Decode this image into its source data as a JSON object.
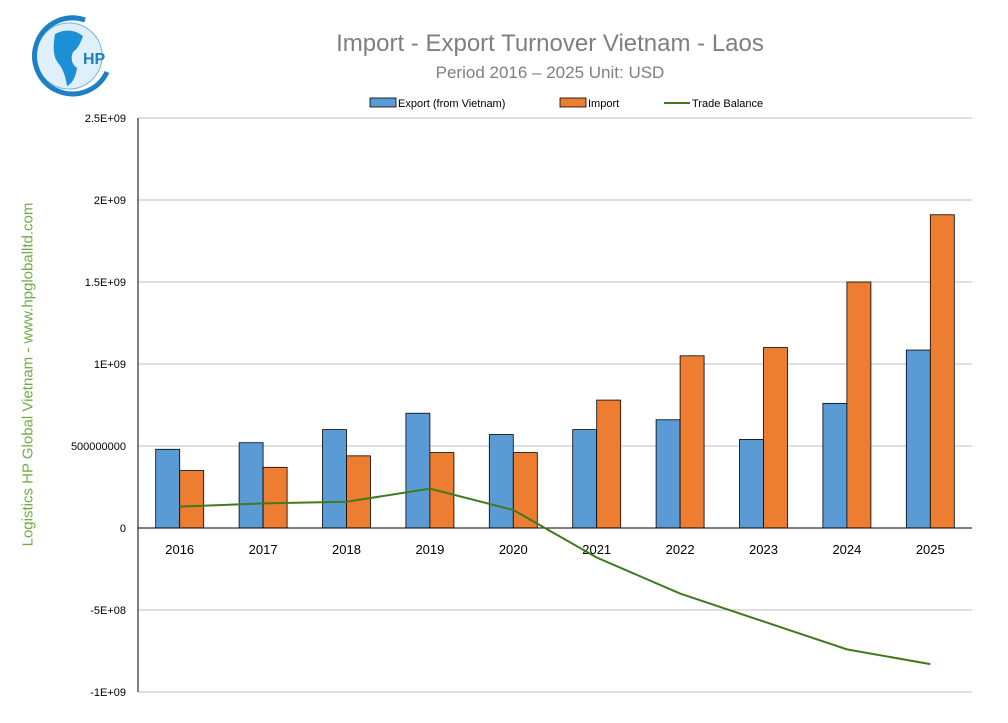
{
  "header": {
    "title": "Import - Export Turnover Vietnam - Laos",
    "subtitle": "Period 2016 – 2025  Unit: USD",
    "logo_text": "HP"
  },
  "side_label": "Logistics HP Global Vietnam - www.hpgloballtd.com",
  "colors": {
    "export": "#5b9bd5",
    "import": "#ed7d31",
    "balance": "#3f7a1e",
    "side": "#70ad47"
  },
  "chart_data": {
    "type": "bar",
    "title": "Import - Export Turnover Vietnam - Laos",
    "subtitle": "Period 2016 – 2025  Unit: USD",
    "categories": [
      "2016",
      "2017",
      "2018",
      "2019",
      "2020",
      "2021",
      "2022",
      "2023",
      "2024",
      "2025"
    ],
    "series": [
      {
        "name": "Export (from Vietnam)",
        "type": "bar",
        "values": [
          480000000,
          520000000,
          600000000,
          700000000,
          570000000,
          600000000,
          660000000,
          540000000,
          760000000,
          1085000000
        ]
      },
      {
        "name": "Import",
        "type": "bar",
        "values": [
          350000000,
          370000000,
          440000000,
          460000000,
          460000000,
          780000000,
          1050000000,
          1100000000,
          1500000000,
          1910000000
        ]
      },
      {
        "name": "Trade Balance",
        "type": "line",
        "values": [
          130000000,
          150000000,
          160000000,
          240000000,
          110000000,
          -180000000,
          -400000000,
          -570000000,
          -740000000,
          -830000000
        ]
      }
    ],
    "ylim": [
      -1000000000,
      2500000000
    ],
    "yticks": [
      {
        "v": 2500000000,
        "label": "2.5E+09"
      },
      {
        "v": 2000000000,
        "label": "2E+09"
      },
      {
        "v": 1500000000,
        "label": "1.5E+09"
      },
      {
        "v": 1000000000,
        "label": "1E+09"
      },
      {
        "v": 500000000,
        "label": "500000000"
      },
      {
        "v": 0,
        "label": "0"
      },
      {
        "v": -500000000,
        "label": "-5E+08"
      },
      {
        "v": -1000000000,
        "label": "-1E+09"
      }
    ],
    "grid": true,
    "legend": "top"
  }
}
